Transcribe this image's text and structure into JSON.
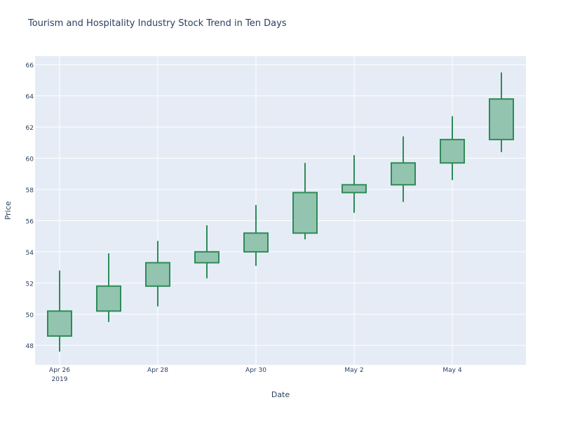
{
  "chart_data": {
    "type": "candlestick",
    "title": "Tourism and Hospitality Industry Stock Trend in Ten Days",
    "xlabel": "Date",
    "ylabel": "Price",
    "x": [
      "2019-04-26",
      "2019-04-27",
      "2019-04-28",
      "2019-04-29",
      "2019-04-30",
      "2019-05-01",
      "2019-05-02",
      "2019-05-03",
      "2019-05-04",
      "2019-05-05"
    ],
    "open": [
      48.6,
      50.2,
      51.8,
      53.3,
      54.0,
      55.2,
      57.8,
      58.3,
      59.7,
      61.2
    ],
    "high": [
      52.8,
      53.9,
      54.7,
      55.7,
      57.0,
      59.7,
      60.2,
      61.4,
      62.7,
      65.5
    ],
    "low": [
      47.6,
      49.5,
      50.5,
      52.3,
      53.1,
      54.8,
      56.5,
      57.2,
      58.6,
      60.4
    ],
    "close": [
      50.2,
      51.8,
      53.3,
      54.0,
      55.2,
      57.8,
      58.3,
      59.7,
      61.2,
      63.8
    ],
    "x_ticks": [
      {
        "date": "2019-04-26",
        "label": "Apr 26",
        "sublabel": "2019"
      },
      {
        "date": "2019-04-28",
        "label": "Apr 28"
      },
      {
        "date": "2019-04-30",
        "label": "Apr 30"
      },
      {
        "date": "2019-05-02",
        "label": "May 2"
      },
      {
        "date": "2019-05-04",
        "label": "May 4"
      }
    ],
    "y_ticks": [
      48,
      50,
      52,
      54,
      56,
      58,
      60,
      62,
      64,
      66
    ],
    "ylim": [
      46.75,
      66.55
    ],
    "xlim": [
      "2019-04-25 12:00",
      "2019-05-05 12:00"
    ],
    "grid": true,
    "colors": {
      "increasing_fill": "#93c4b0",
      "increasing_line": "#2e8b57",
      "plot_background": "#e5ecf6",
      "grid": "#ffffff",
      "text": "#2a3f5f"
    }
  }
}
